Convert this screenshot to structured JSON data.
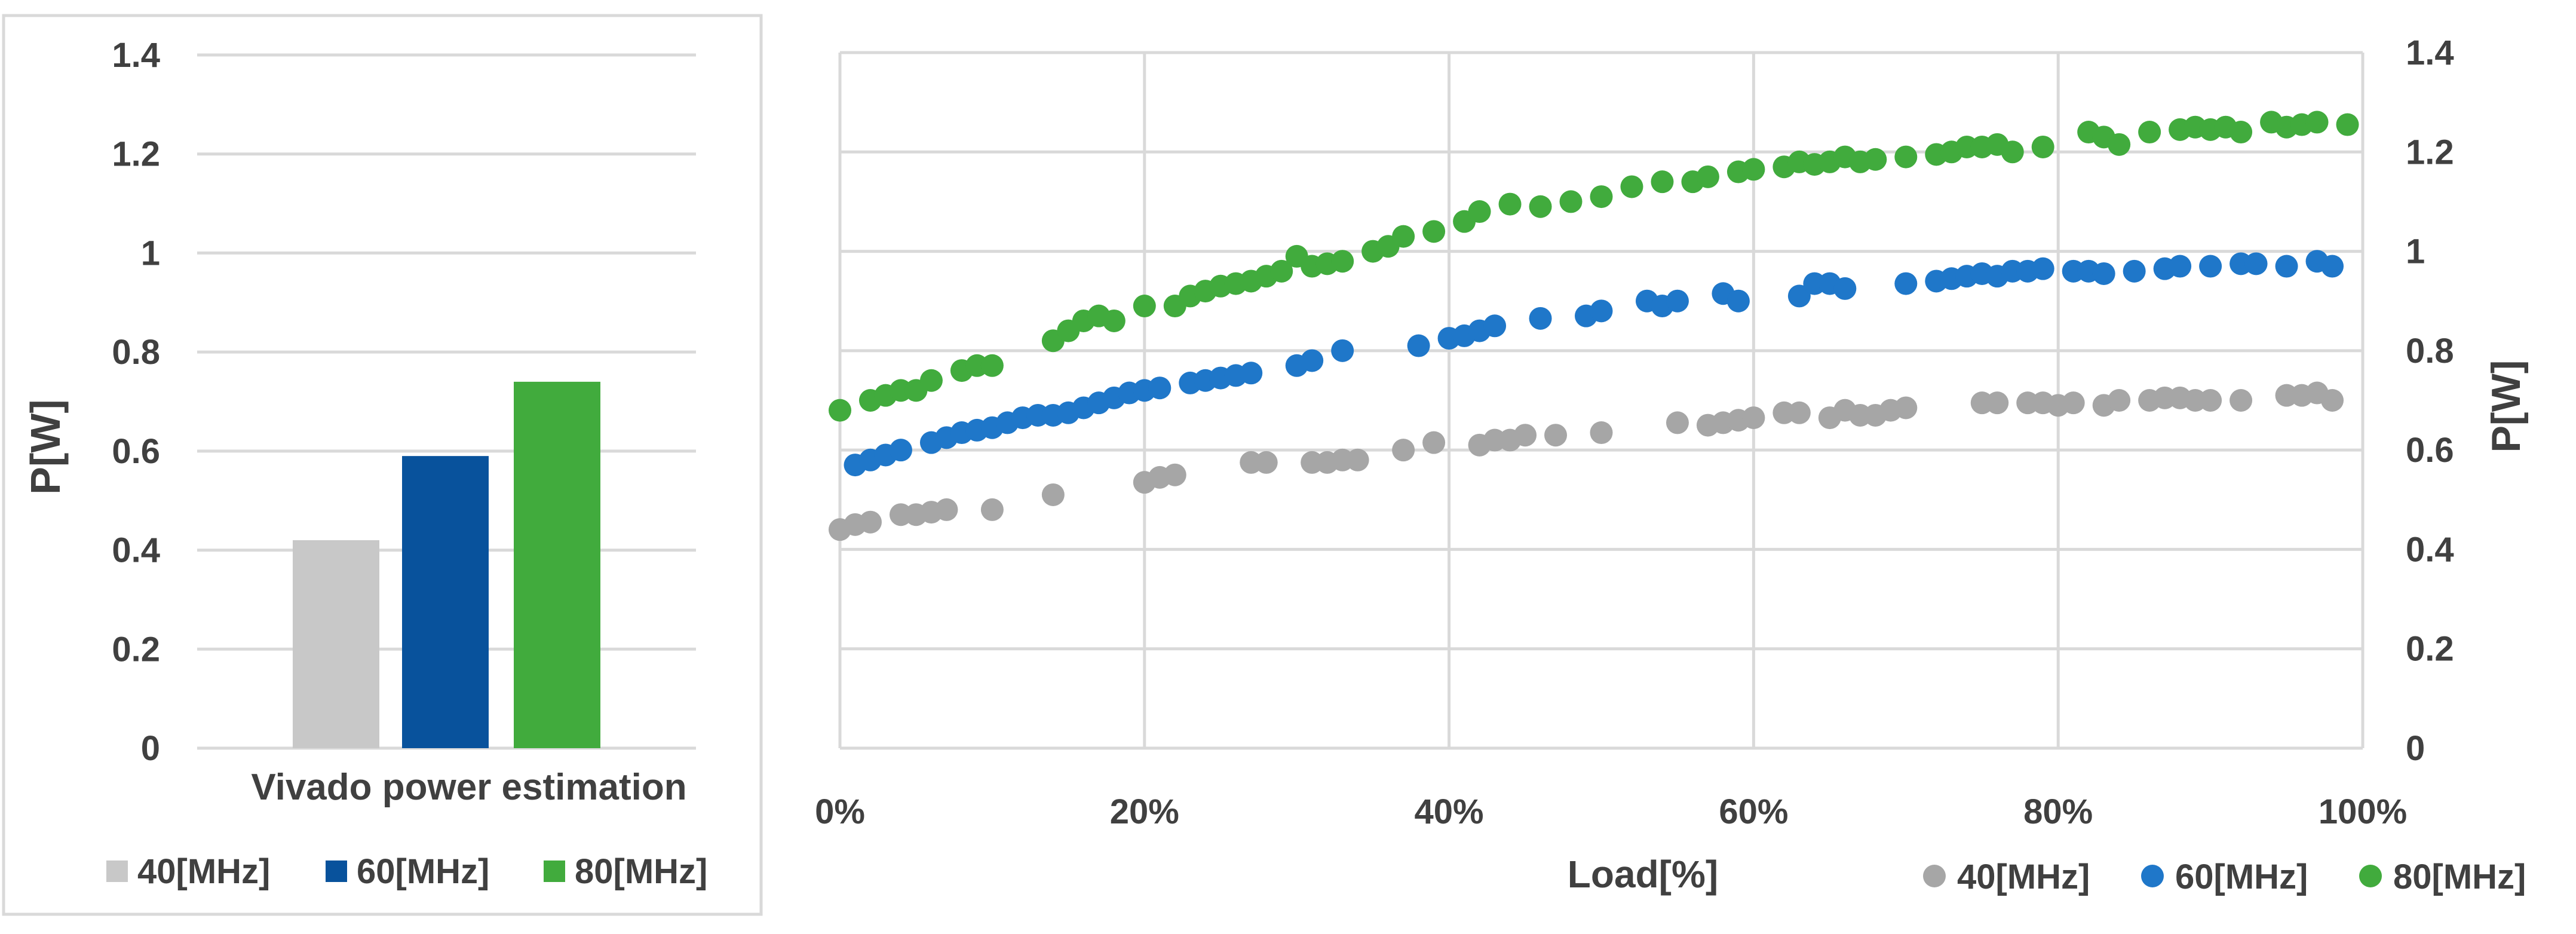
{
  "chart_data": [
    {
      "type": "bar",
      "xlabel": "Vivado power estimation",
      "ylabel": "P[W]",
      "ylim": [
        0,
        1.4
      ],
      "y_ticks": [
        "0",
        "0.2",
        "0.4",
        "0.6",
        "0.8",
        "1",
        "1.2",
        "1.4"
      ],
      "grid": true,
      "legend_position": "bottom",
      "series": [
        {
          "name": "40[MHz]",
          "color": "#c8c8c8",
          "values": [
            0.42
          ]
        },
        {
          "name": "60[MHz]",
          "color": "#08529c",
          "values": [
            0.59
          ]
        },
        {
          "name": "80[MHz]",
          "color": "#41ab3d",
          "values": [
            0.74
          ]
        }
      ]
    },
    {
      "type": "scatter",
      "xlabel": "Load[%]",
      "ylabel": "P[W]",
      "xlim": [
        0,
        100
      ],
      "ylim": [
        0,
        1.4
      ],
      "x_ticks": [
        "0%",
        "20%",
        "40%",
        "60%",
        "80%",
        "100%"
      ],
      "y_ticks": [
        "0",
        "0.2",
        "0.4",
        "0.6",
        "0.8",
        "1",
        "1.2",
        "1.4"
      ],
      "y_axis_side": "right",
      "grid": true,
      "legend_position": "bottom-right",
      "series": [
        {
          "name": "40[MHz]",
          "color": "#a6a6a6",
          "points": [
            [
              0,
              0.44
            ],
            [
              1,
              0.45
            ],
            [
              2,
              0.455
            ],
            [
              4,
              0.47
            ],
            [
              5,
              0.47
            ],
            [
              6,
              0.475
            ],
            [
              7,
              0.48
            ],
            [
              10,
              0.48
            ],
            [
              14,
              0.51
            ],
            [
              20,
              0.535
            ],
            [
              21,
              0.545
            ],
            [
              22,
              0.55
            ],
            [
              27,
              0.575
            ],
            [
              28,
              0.575
            ],
            [
              31,
              0.575
            ],
            [
              32,
              0.575
            ],
            [
              33,
              0.58
            ],
            [
              34,
              0.58
            ],
            [
              37,
              0.6
            ],
            [
              39,
              0.615
            ],
            [
              42,
              0.61
            ],
            [
              43,
              0.62
            ],
            [
              44,
              0.62
            ],
            [
              45,
              0.63
            ],
            [
              47,
              0.63
            ],
            [
              50,
              0.635
            ],
            [
              55,
              0.655
            ],
            [
              57,
              0.65
            ],
            [
              58,
              0.655
            ],
            [
              59,
              0.66
            ],
            [
              60,
              0.665
            ],
            [
              62,
              0.675
            ],
            [
              63,
              0.675
            ],
            [
              65,
              0.665
            ],
            [
              66,
              0.68
            ],
            [
              67,
              0.67
            ],
            [
              68,
              0.67
            ],
            [
              69,
              0.68
            ],
            [
              70,
              0.685
            ],
            [
              75,
              0.695
            ],
            [
              76,
              0.695
            ],
            [
              78,
              0.695
            ],
            [
              79,
              0.695
            ],
            [
              80,
              0.69
            ],
            [
              81,
              0.695
            ],
            [
              83,
              0.69
            ],
            [
              84,
              0.7
            ],
            [
              86,
              0.7
            ],
            [
              87,
              0.705
            ],
            [
              88,
              0.705
            ],
            [
              89,
              0.7
            ],
            [
              90,
              0.7
            ],
            [
              92,
              0.7
            ],
            [
              95,
              0.71
            ],
            [
              96,
              0.71
            ],
            [
              97,
              0.715
            ],
            [
              98,
              0.7
            ]
          ]
        },
        {
          "name": "60[MHz]",
          "color": "#1f77c9",
          "points": [
            [
              1,
              0.57
            ],
            [
              2,
              0.58
            ],
            [
              3,
              0.59
            ],
            [
              4,
              0.6
            ],
            [
              6,
              0.615
            ],
            [
              7,
              0.625
            ],
            [
              8,
              0.635
            ],
            [
              9,
              0.64
            ],
            [
              10,
              0.645
            ],
            [
              11,
              0.655
            ],
            [
              12,
              0.665
            ],
            [
              13,
              0.67
            ],
            [
              14,
              0.67
            ],
            [
              15,
              0.675
            ],
            [
              16,
              0.685
            ],
            [
              17,
              0.695
            ],
            [
              18,
              0.705
            ],
            [
              19,
              0.715
            ],
            [
              20,
              0.72
            ],
            [
              21,
              0.725
            ],
            [
              23,
              0.735
            ],
            [
              24,
              0.74
            ],
            [
              25,
              0.745
            ],
            [
              26,
              0.75
            ],
            [
              27,
              0.755
            ],
            [
              30,
              0.77
            ],
            [
              31,
              0.78
            ],
            [
              33,
              0.8
            ],
            [
              38,
              0.81
            ],
            [
              40,
              0.825
            ],
            [
              41,
              0.83
            ],
            [
              42,
              0.84
            ],
            [
              43,
              0.85
            ],
            [
              46,
              0.865
            ],
            [
              49,
              0.87
            ],
            [
              50,
              0.88
            ],
            [
              53,
              0.9
            ],
            [
              54,
              0.89
            ],
            [
              55,
              0.9
            ],
            [
              58,
              0.915
            ],
            [
              59,
              0.9
            ],
            [
              63,
              0.91
            ],
            [
              64,
              0.935
            ],
            [
              65,
              0.935
            ],
            [
              66,
              0.925
            ],
            [
              70,
              0.935
            ],
            [
              72,
              0.94
            ],
            [
              73,
              0.945
            ],
            [
              74,
              0.95
            ],
            [
              75,
              0.955
            ],
            [
              76,
              0.95
            ],
            [
              77,
              0.96
            ],
            [
              78,
              0.96
            ],
            [
              79,
              0.965
            ],
            [
              81,
              0.96
            ],
            [
              82,
              0.96
            ],
            [
              83,
              0.955
            ],
            [
              85,
              0.96
            ],
            [
              87,
              0.965
            ],
            [
              88,
              0.97
            ],
            [
              90,
              0.97
            ],
            [
              92,
              0.975
            ],
            [
              93,
              0.975
            ],
            [
              95,
              0.97
            ],
            [
              97,
              0.98
            ],
            [
              98,
              0.97
            ]
          ]
        },
        {
          "name": "80[MHz]",
          "color": "#41ab3d",
          "points": [
            [
              0,
              0.68
            ],
            [
              2,
              0.7
            ],
            [
              3,
              0.71
            ],
            [
              4,
              0.72
            ],
            [
              5,
              0.72
            ],
            [
              6,
              0.74
            ],
            [
              8,
              0.76
            ],
            [
              9,
              0.77
            ],
            [
              10,
              0.77
            ],
            [
              14,
              0.82
            ],
            [
              15,
              0.84
            ],
            [
              16,
              0.86
            ],
            [
              17,
              0.87
            ],
            [
              18,
              0.86
            ],
            [
              20,
              0.89
            ],
            [
              22,
              0.89
            ],
            [
              23,
              0.91
            ],
            [
              24,
              0.92
            ],
            [
              25,
              0.93
            ],
            [
              26,
              0.935
            ],
            [
              27,
              0.94
            ],
            [
              28,
              0.95
            ],
            [
              29,
              0.96
            ],
            [
              30,
              0.99
            ],
            [
              31,
              0.97
            ],
            [
              32,
              0.975
            ],
            [
              33,
              0.98
            ],
            [
              35,
              1.0
            ],
            [
              36,
              1.01
            ],
            [
              37,
              1.03
            ],
            [
              39,
              1.04
            ],
            [
              41,
              1.06
            ],
            [
              42,
              1.08
            ],
            [
              44,
              1.095
            ],
            [
              46,
              1.09
            ],
            [
              48,
              1.1
            ],
            [
              50,
              1.11
            ],
            [
              52,
              1.13
            ],
            [
              54,
              1.14
            ],
            [
              56,
              1.14
            ],
            [
              57,
              1.15
            ],
            [
              59,
              1.16
            ],
            [
              60,
              1.165
            ],
            [
              62,
              1.17
            ],
            [
              63,
              1.18
            ],
            [
              64,
              1.175
            ],
            [
              65,
              1.18
            ],
            [
              66,
              1.19
            ],
            [
              67,
              1.18
            ],
            [
              68,
              1.185
            ],
            [
              70,
              1.19
            ],
            [
              72,
              1.195
            ],
            [
              73,
              1.2
            ],
            [
              74,
              1.21
            ],
            [
              75,
              1.21
            ],
            [
              76,
              1.215
            ],
            [
              77,
              1.2
            ],
            [
              79,
              1.21
            ],
            [
              82,
              1.24
            ],
            [
              83,
              1.23
            ],
            [
              84,
              1.215
            ],
            [
              86,
              1.24
            ],
            [
              88,
              1.245
            ],
            [
              89,
              1.25
            ],
            [
              90,
              1.245
            ],
            [
              91,
              1.25
            ],
            [
              92,
              1.24
            ],
            [
              94,
              1.26
            ],
            [
              95,
              1.25
            ],
            [
              96,
              1.255
            ],
            [
              97,
              1.26
            ],
            [
              99,
              1.255
            ]
          ]
        }
      ]
    }
  ]
}
